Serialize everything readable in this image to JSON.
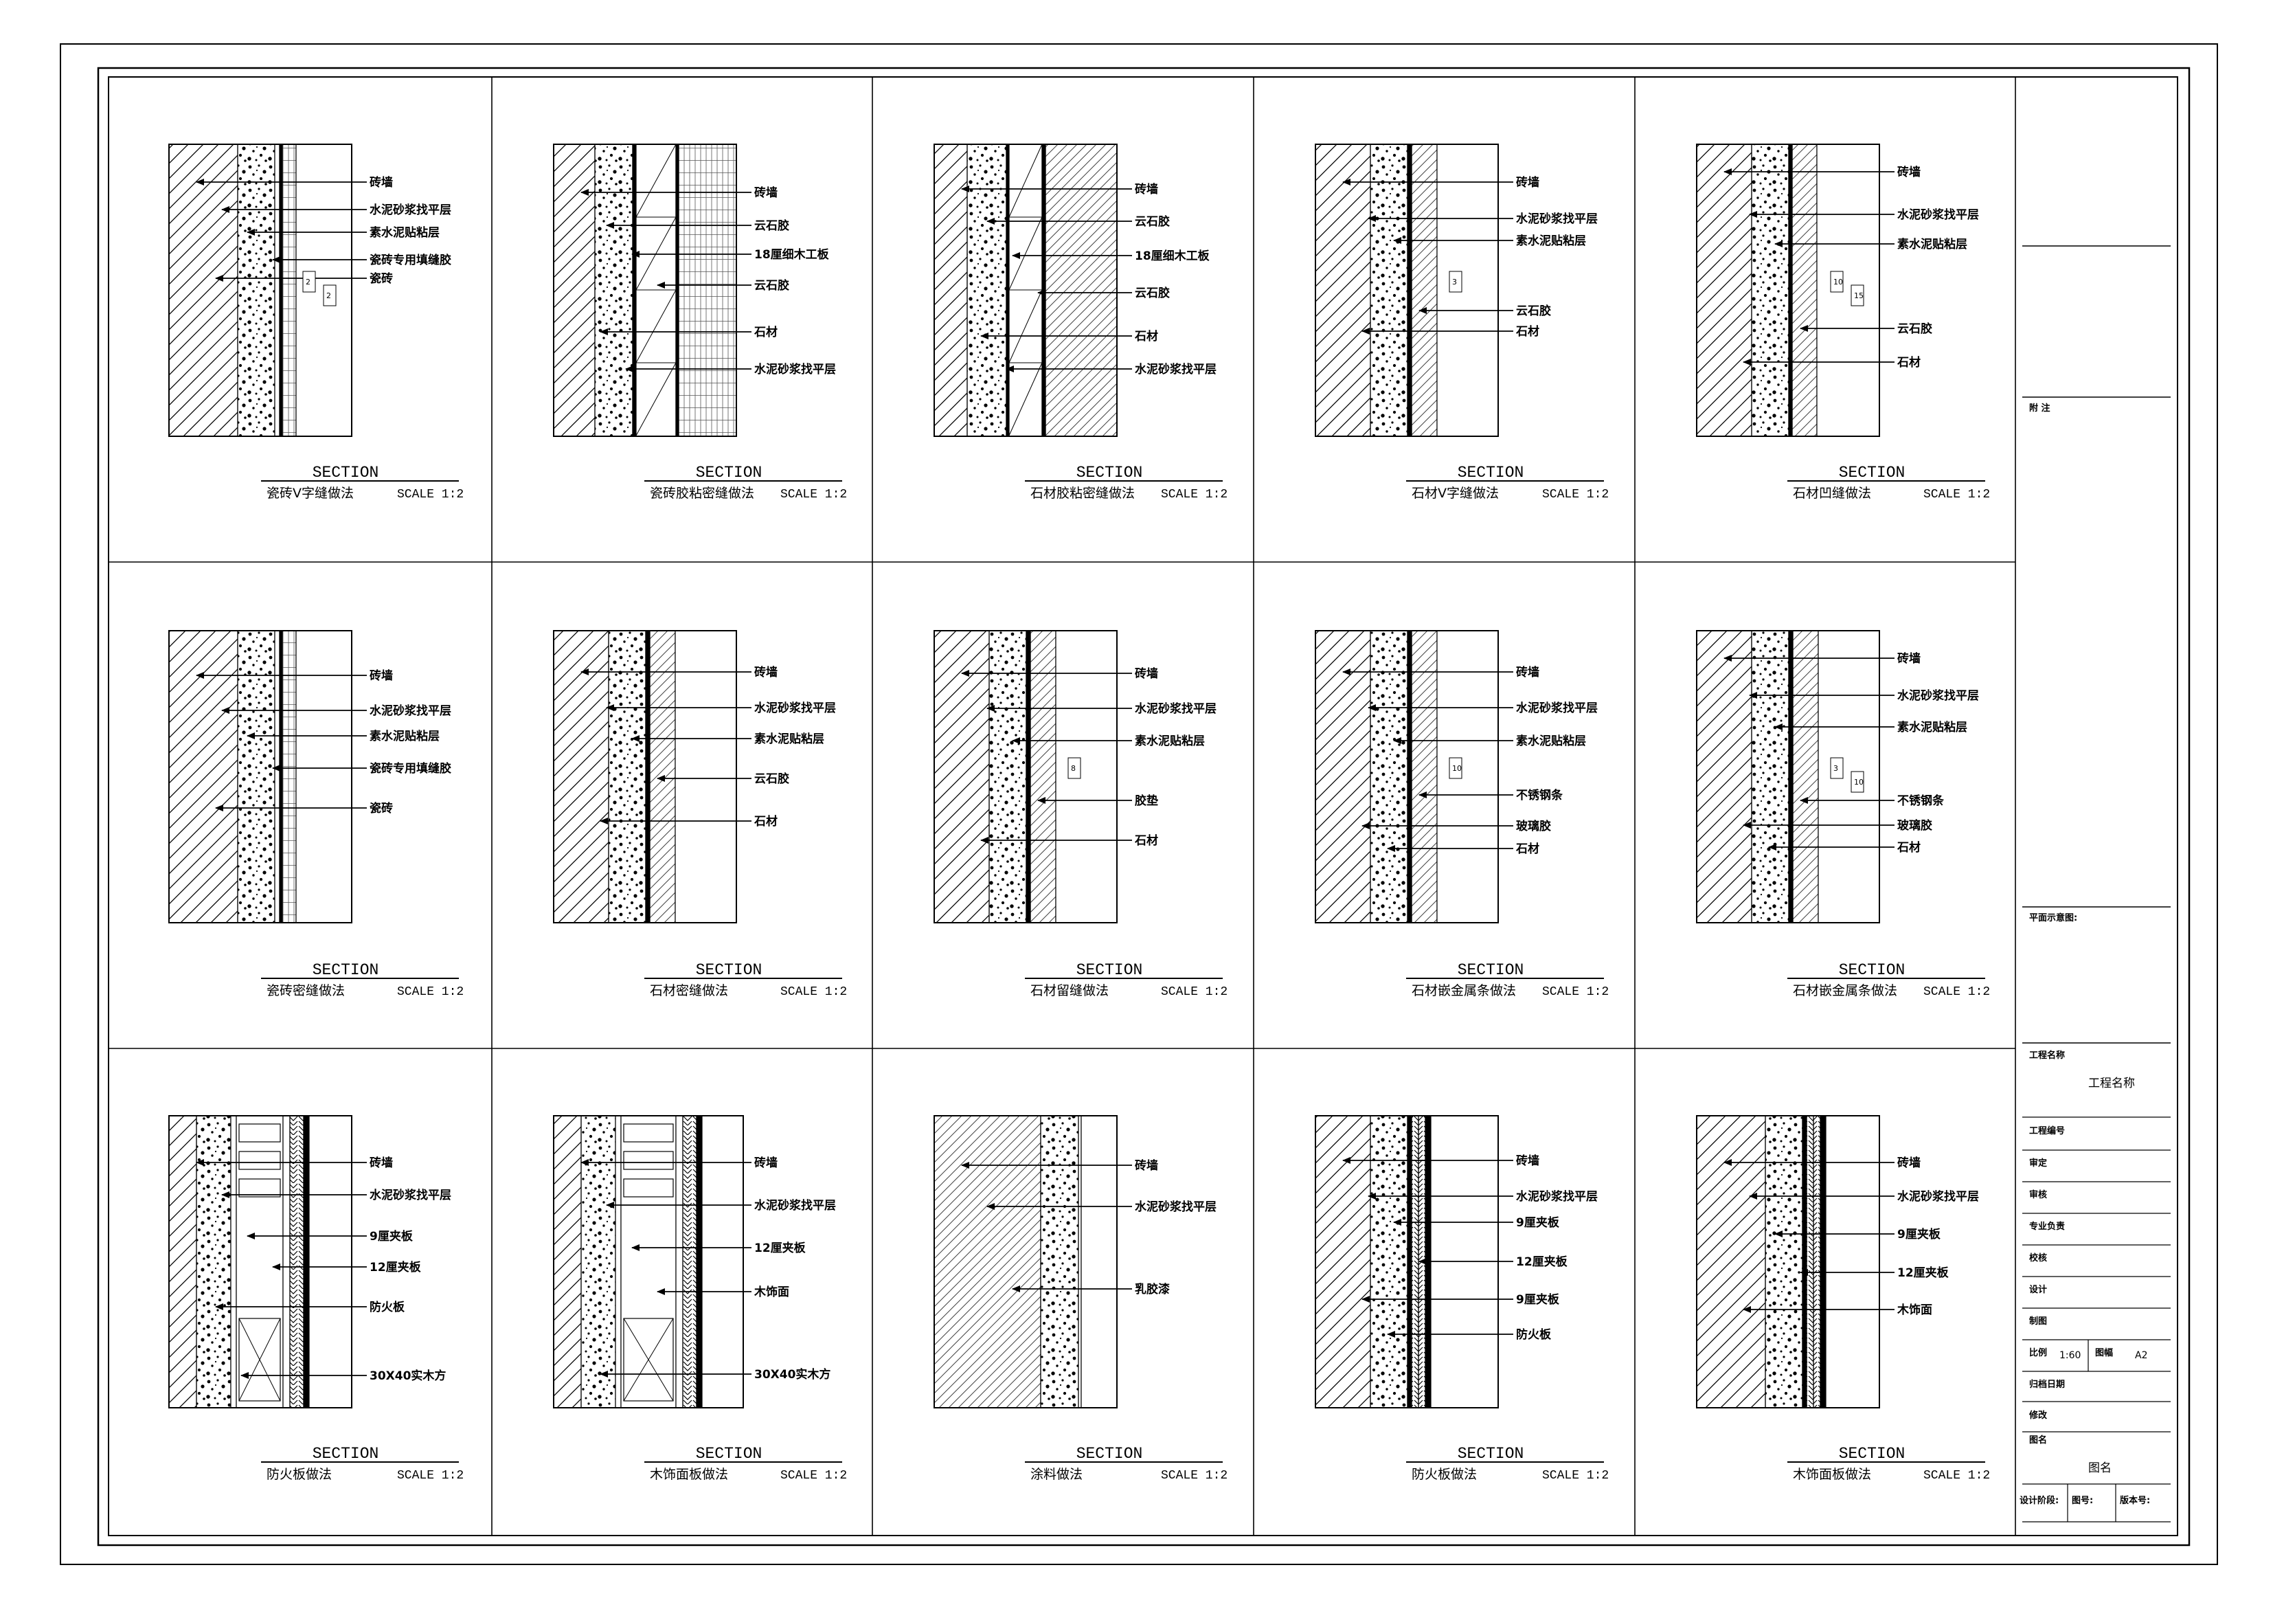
{
  "sheet": {
    "section_word": "SECTION",
    "scale_text": "SCALE 1:2"
  },
  "details": [
    {
      "caption": "瓷砖V字缝做法",
      "labels": [
        "砖墙",
        "水泥砂浆找平层",
        "素水泥贴粘层",
        "瓷砖专用填缝胶",
        "瓷砖"
      ],
      "dims": [
        "2",
        "2"
      ]
    },
    {
      "caption": "瓷砖胶粘密缝做法",
      "labels": [
        "砖墙",
        "云石胶",
        "18厘细木工板",
        "云石胶",
        "石材",
        "水泥砂浆找平层"
      ],
      "dims": []
    },
    {
      "caption": "石材胶粘密缝做法",
      "labels": [
        "砖墙",
        "云石胶",
        "18厘细木工板",
        "云石胶",
        "石材",
        "水泥砂浆找平层"
      ],
      "dims": []
    },
    {
      "caption": "石材V字缝做法",
      "labels": [
        "砖墙",
        "水泥砂浆找平层",
        "素水泥贴粘层",
        "云石胶",
        "石材"
      ],
      "dims": [
        "3"
      ]
    },
    {
      "caption": "石材凹缝做法",
      "labels": [
        "砖墙",
        "水泥砂浆找平层",
        "素水泥贴粘层",
        "云石胶",
        "石材"
      ],
      "dims": [
        "10",
        "15"
      ]
    },
    {
      "caption": "瓷砖密缝做法",
      "labels": [
        "砖墙",
        "水泥砂浆找平层",
        "素水泥贴粘层",
        "瓷砖专用填缝胶",
        "瓷砖"
      ],
      "dims": []
    },
    {
      "caption": "石材密缝做法",
      "labels": [
        "砖墙",
        "水泥砂浆找平层",
        "素水泥贴粘层",
        "云石胶",
        "石材"
      ],
      "dims": []
    },
    {
      "caption": "石材留缝做法",
      "labels": [
        "砖墙",
        "水泥砂浆找平层",
        "素水泥贴粘层",
        "胶垫",
        "石材"
      ],
      "dims": [
        "8"
      ]
    },
    {
      "caption": "石材嵌金属条做法",
      "labels": [
        "砖墙",
        "水泥砂浆找平层",
        "素水泥贴粘层",
        "不锈钢条",
        "玻璃胶",
        "石材"
      ],
      "dims": [
        "10"
      ]
    },
    {
      "caption": "石材嵌金属条做法",
      "labels": [
        "砖墙",
        "水泥砂浆找平层",
        "素水泥贴粘层",
        "不锈钢条",
        "玻璃胶",
        "石材"
      ],
      "dims": [
        "3",
        "10"
      ]
    },
    {
      "caption": "防火板做法",
      "labels": [
        "砖墙",
        "水泥砂浆找平层",
        "9厘夹板",
        "12厘夹板",
        "防火板",
        "30X40实木方"
      ],
      "dims": []
    },
    {
      "caption": "木饰面板做法",
      "labels": [
        "砖墙",
        "水泥砂浆找平层",
        "12厘夹板",
        "木饰面",
        "30X40实木方"
      ],
      "dims": []
    },
    {
      "caption": "涂料做法",
      "labels": [
        "砖墙",
        "水泥砂浆找平层",
        "乳胶漆"
      ],
      "dims": []
    },
    {
      "caption": "防火板做法",
      "labels": [
        "砖墙",
        "水泥砂浆找平层",
        "9厘夹板",
        "12厘夹板",
        "9厘夹板",
        "防火板"
      ],
      "dims": []
    },
    {
      "caption": "木饰面板做法",
      "labels": [
        "砖墙",
        "水泥砂浆找平层",
        "9厘夹板",
        "12厘夹板",
        "木饰面"
      ],
      "dims": []
    }
  ],
  "title_block": {
    "notes_label": "附 注",
    "plan_label": "平面示意图:",
    "project_name_label": "工程名称",
    "project_name_value": "工程名称",
    "project_no_label": "工程编号",
    "approve_label": "审定",
    "review_label": "审核",
    "lead_label": "专业负责",
    "check_label": "校核",
    "design_label": "设计",
    "draw_label": "制图",
    "ratio_label": "比例",
    "ratio_value": "1:60",
    "sheet_size_label": "图幅",
    "sheet_size_value": "A2",
    "archive_date_label": "归档日期",
    "revision_label": "修改",
    "drawing_name_label": "图名",
    "drawing_name_value": "图名",
    "phase_label": "设计阶段:",
    "drawing_no_label": "图号:",
    "version_label": "版本号:"
  }
}
